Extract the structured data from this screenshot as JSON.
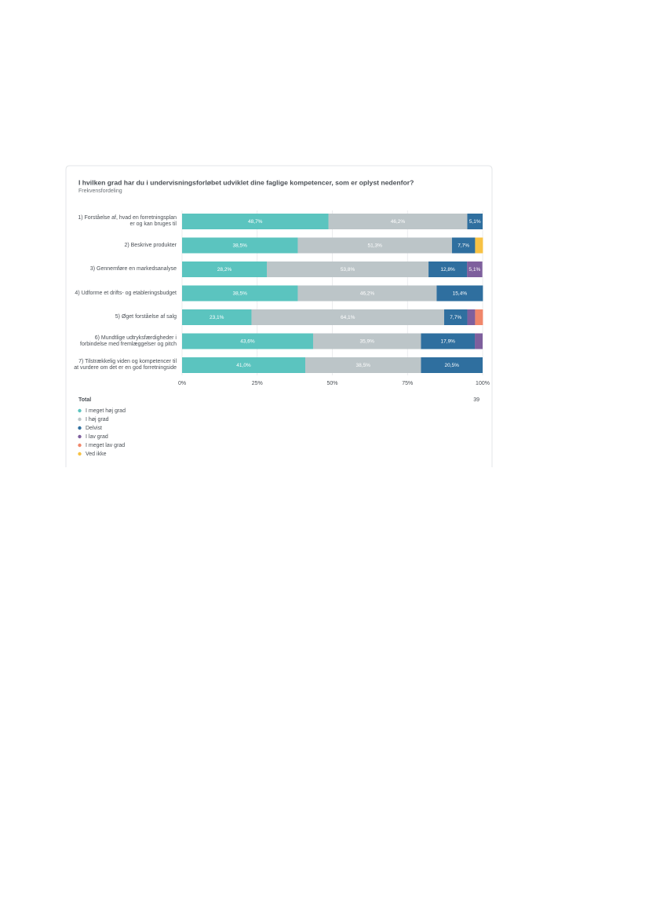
{
  "chart_data": {
    "type": "stacked-bar-horizontal",
    "title": "I hvilken grad har du i undervisningsforløbet udviklet dine faglige kompetencer, som er oplyst nedenfor?",
    "subtitle": "Frekvensfordeling",
    "categories": [
      "1) Forståelse af, hvad en forretningsplan er og kan bruges til",
      "2) Beskrive produkter",
      "3) Gennemføre en markedsanalyse",
      "4) Udforme et drifts- og etableringsbudget",
      "5) Øget forståelse af salg",
      "6) Mundtlige udtryksfærdigheder i forbindelse med fremlæggelser og pitch",
      "7) Tilstrækkelig viden og kompetencer til at vurdere om det er en god forretningside"
    ],
    "series": [
      {
        "name": "I meget høj grad",
        "color": "#5bc4bf",
        "values": [
          48.7,
          38.5,
          28.2,
          38.5,
          23.1,
          43.6,
          41.0
        ],
        "value_labels": [
          "48,7%",
          "38,5%",
          "28,2%",
          "38,5%",
          "23,1%",
          "43,6%",
          "41,0%"
        ]
      },
      {
        "name": "I høj grad",
        "color": "#bcc5c8",
        "values": [
          46.2,
          51.3,
          53.8,
          46.2,
          64.1,
          35.9,
          38.5
        ],
        "value_labels": [
          "46,2%",
          "51,3%",
          "53,8%",
          "46,2%",
          "64,1%",
          "35,9%",
          "38,5%"
        ]
      },
      {
        "name": "Delvist",
        "color": "#2f6f9f",
        "values": [
          5.1,
          7.7,
          12.8,
          15.4,
          7.7,
          17.9,
          20.5
        ],
        "value_labels": [
          "5,1%",
          "7,7%",
          "12,8%",
          "15,4%",
          "7,7%",
          "17,9%",
          "20,5%"
        ]
      },
      {
        "name": "I lav grad",
        "color": "#7e5f9d",
        "values": [
          0,
          0,
          5.1,
          0,
          2.6,
          2.6,
          0
        ],
        "value_labels": [
          null,
          null,
          "5,1%",
          null,
          null,
          null,
          null
        ]
      },
      {
        "name": "I meget lav grad",
        "color": "#f0866a",
        "values": [
          0,
          0,
          0,
          0,
          2.6,
          0,
          0
        ]
      },
      {
        "name": "Ved ikke",
        "color": "#f7c244",
        "values": [
          0,
          2.6,
          0,
          0,
          0,
          0,
          0
        ]
      }
    ],
    "xlim": [
      0,
      100
    ],
    "xticks": [
      {
        "value": 0,
        "label": "0%"
      },
      {
        "value": 25,
        "label": "25%"
      },
      {
        "value": 50,
        "label": "50%"
      },
      {
        "value": 75,
        "label": "75%"
      },
      {
        "value": 100,
        "label": "100%"
      }
    ],
    "grid": true,
    "total_label": "Total",
    "total_n": 39
  }
}
